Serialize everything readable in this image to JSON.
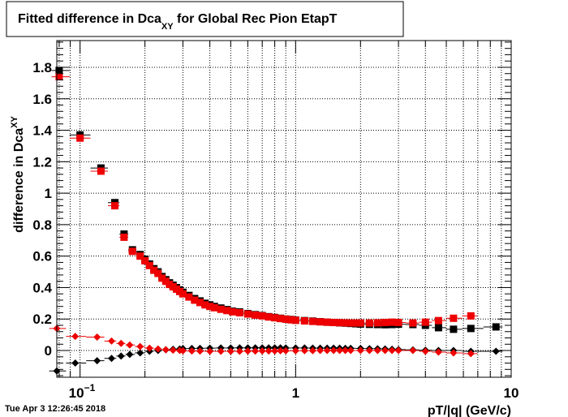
{
  "chart_data": {
    "type": "scatter",
    "title": {
      "prefix": "Fitted difference in Dca",
      "sub": "XY",
      "suffix": " for Global Rec Pion EtapT"
    },
    "xlabel": "pT/|q| (GeV/c)",
    "ylabel": {
      "prefix": "difference in Dca",
      "sub": "XY"
    },
    "x_scale": "log",
    "xlim": [
      0.078,
      10
    ],
    "ylim": [
      -0.17,
      1.97
    ],
    "grid": true,
    "legend": "none",
    "x_ticks": [
      {
        "v": 0.1,
        "base": "10",
        "exp": "−1"
      },
      {
        "v": 1,
        "label": "1"
      },
      {
        "v": 10,
        "label": "10"
      }
    ],
    "y_ticks": [
      0,
      0.2,
      0.4,
      0.6,
      0.8,
      1,
      1.2,
      1.4,
      1.6,
      1.8
    ],
    "y_tick_labels": [
      "0",
      "0.2",
      "0.4",
      "0.6",
      "0.8",
      "1",
      "1.2",
      "1.4",
      "1.6",
      "1.8"
    ],
    "series": [
      {
        "marker": "square",
        "color": "#000000",
        "x": [
          0.08,
          0.1,
          0.125,
          0.145,
          0.16,
          0.175,
          0.19,
          0.2,
          0.21,
          0.22,
          0.23,
          0.24,
          0.25,
          0.26,
          0.27,
          0.28,
          0.29,
          0.3,
          0.32,
          0.34,
          0.36,
          0.38,
          0.4,
          0.42,
          0.45,
          0.48,
          0.51,
          0.55,
          0.6,
          0.65,
          0.7,
          0.75,
          0.8,
          0.85,
          0.9,
          0.95,
          1.0,
          1.1,
          1.2,
          1.3,
          1.4,
          1.5,
          1.6,
          1.7,
          1.8,
          1.9,
          2.0,
          2.2,
          2.4,
          2.6,
          2.8,
          3.0,
          3.5,
          4.0,
          4.6,
          5.4,
          6.5,
          8.5
        ],
        "y": [
          1.78,
          1.37,
          1.16,
          0.94,
          0.74,
          0.64,
          0.61,
          0.58,
          0.55,
          0.52,
          0.5,
          0.47,
          0.45,
          0.43,
          0.415,
          0.4,
          0.385,
          0.37,
          0.35,
          0.33,
          0.315,
          0.3,
          0.29,
          0.28,
          0.27,
          0.26,
          0.25,
          0.245,
          0.235,
          0.228,
          0.222,
          0.215,
          0.21,
          0.205,
          0.2,
          0.197,
          0.193,
          0.19,
          0.187,
          0.183,
          0.18,
          0.178,
          0.176,
          0.174,
          0.172,
          0.17,
          0.168,
          0.166,
          0.165,
          0.164,
          0.165,
          0.167,
          0.165,
          0.16,
          0.145,
          0.135,
          0.14,
          0.15
        ]
      },
      {
        "marker": "square",
        "color": "#ee0000",
        "x": [
          0.08,
          0.1,
          0.125,
          0.145,
          0.16,
          0.175,
          0.19,
          0.2,
          0.21,
          0.22,
          0.23,
          0.24,
          0.25,
          0.26,
          0.27,
          0.28,
          0.29,
          0.3,
          0.32,
          0.34,
          0.36,
          0.38,
          0.4,
          0.42,
          0.45,
          0.48,
          0.51,
          0.55,
          0.6,
          0.65,
          0.7,
          0.75,
          0.8,
          0.85,
          0.9,
          0.95,
          1.0,
          1.1,
          1.2,
          1.3,
          1.4,
          1.5,
          1.6,
          1.7,
          1.8,
          1.9,
          2.0,
          2.2,
          2.4,
          2.6,
          2.8,
          3.0,
          3.5,
          4.0,
          4.6,
          5.4,
          6.5
        ],
        "y": [
          1.74,
          1.35,
          1.14,
          0.92,
          0.72,
          0.63,
          0.6,
          0.57,
          0.54,
          0.51,
          0.49,
          0.46,
          0.44,
          0.42,
          0.405,
          0.39,
          0.375,
          0.36,
          0.34,
          0.32,
          0.305,
          0.29,
          0.28,
          0.272,
          0.262,
          0.254,
          0.246,
          0.24,
          0.232,
          0.225,
          0.22,
          0.213,
          0.208,
          0.203,
          0.199,
          0.195,
          0.192,
          0.188,
          0.185,
          0.182,
          0.18,
          0.178,
          0.177,
          0.176,
          0.175,
          0.175,
          0.175,
          0.175,
          0.176,
          0.178,
          0.18,
          0.178,
          0.175,
          0.18,
          0.19,
          0.205,
          0.22
        ]
      },
      {
        "marker": "diamond",
        "color": "#000000",
        "x": [
          0.078,
          0.095,
          0.12,
          0.14,
          0.155,
          0.17,
          0.19,
          0.21,
          0.23,
          0.25,
          0.27,
          0.29,
          0.3,
          0.33,
          0.36,
          0.4,
          0.45,
          0.5,
          0.55,
          0.6,
          0.65,
          0.7,
          0.75,
          0.8,
          0.85,
          0.9,
          1.0,
          1.1,
          1.2,
          1.3,
          1.4,
          1.5,
          1.6,
          1.7,
          1.8,
          2.0,
          2.2,
          2.4,
          2.6,
          2.8,
          3.0,
          3.5,
          4.0,
          4.6,
          5.4,
          6.5,
          8.5
        ],
        "y": [
          -0.13,
          -0.08,
          -0.065,
          -0.05,
          -0.035,
          -0.025,
          -0.015,
          -0.005,
          0.0,
          0.005,
          0.008,
          0.01,
          0.012,
          0.013,
          0.014,
          0.015,
          0.016,
          0.016,
          0.017,
          0.017,
          0.017,
          0.017,
          0.017,
          0.017,
          0.017,
          0.016,
          0.016,
          0.016,
          0.015,
          0.015,
          0.015,
          0.015,
          0.015,
          0.014,
          0.014,
          0.013,
          0.012,
          0.011,
          0.01,
          0.008,
          0.006,
          0.004,
          0.002,
          0.0,
          0.0,
          -0.005,
          -0.005
        ]
      },
      {
        "marker": "diamond",
        "color": "#ee0000",
        "x": [
          0.078,
          0.095,
          0.12,
          0.14,
          0.155,
          0.17,
          0.19,
          0.21,
          0.23,
          0.25,
          0.27,
          0.29,
          0.3,
          0.33,
          0.36,
          0.4,
          0.45,
          0.5,
          0.55,
          0.6,
          0.65,
          0.7,
          0.75,
          0.8,
          0.85,
          0.9,
          1.0,
          1.1,
          1.2,
          1.3,
          1.4,
          1.5,
          1.6,
          1.7,
          1.8,
          2.0,
          2.2,
          2.4,
          2.6,
          2.8,
          3.0,
          3.5,
          4.0,
          4.6,
          5.4,
          6.5
        ],
        "y": [
          0.14,
          0.09,
          0.085,
          0.06,
          0.045,
          0.035,
          0.025,
          0.015,
          0.01,
          0.005,
          0.002,
          0.0,
          -0.002,
          -0.003,
          -0.004,
          -0.005,
          -0.005,
          -0.005,
          -0.005,
          -0.004,
          -0.004,
          -0.003,
          -0.003,
          -0.003,
          -0.002,
          -0.002,
          -0.002,
          -0.001,
          -0.001,
          0.0,
          0.0,
          0.0,
          0.0,
          0.0,
          0.0,
          0.0,
          0.0,
          0.0,
          0.0,
          0.0,
          0.0,
          0.0,
          -0.005,
          -0.01,
          -0.015,
          -0.02
        ]
      }
    ],
    "timestamp": "Tue Apr  3 12:26:45 2018"
  }
}
